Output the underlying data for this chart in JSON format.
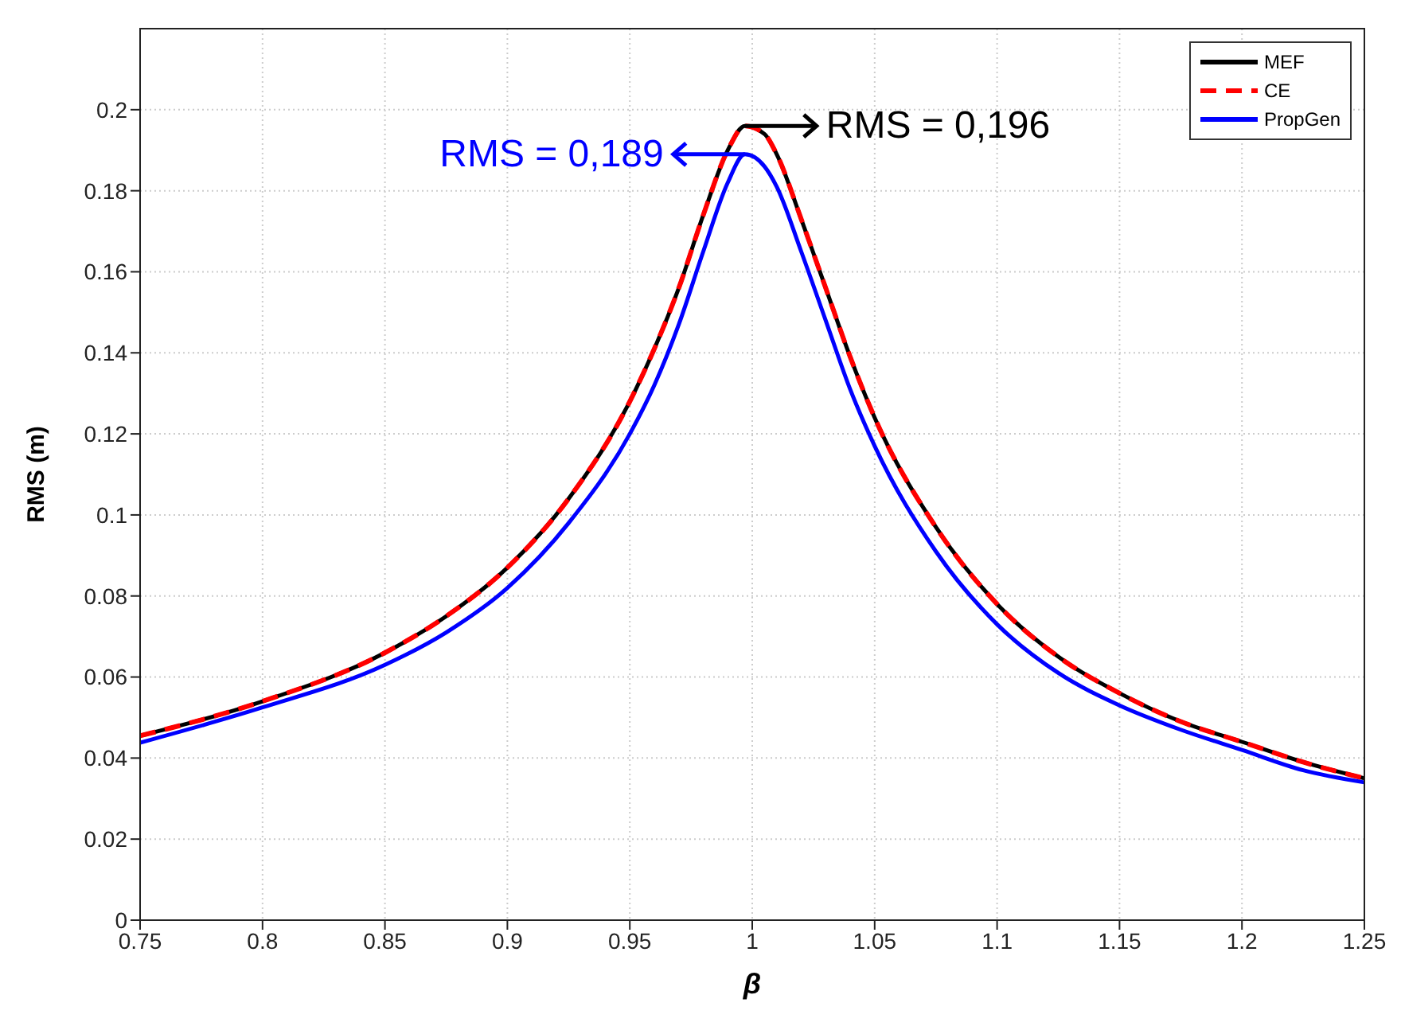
{
  "chart_data": {
    "type": "line",
    "xlabel": "β",
    "ylabel": "RMS (m)",
    "x": [
      0.75,
      0.8,
      0.85,
      0.875,
      0.9,
      0.925,
      0.95,
      0.96,
      0.97,
      0.98,
      0.99,
      0.997,
      1.005,
      1.01,
      1.02,
      1.03,
      1.04,
      1.05,
      1.075,
      1.1,
      1.125,
      1.15,
      1.175,
      1.2,
      1.225,
      1.25
    ],
    "series": [
      {
        "name": "MEF",
        "color": "#000000",
        "line_style": "solid",
        "values": [
          0.0455,
          0.054,
          0.066,
          0.075,
          0.087,
          0.104,
          0.128,
          0.141,
          0.156,
          0.174,
          0.19,
          0.196,
          0.194,
          0.189,
          0.173,
          0.156,
          0.139,
          0.124,
          0.097,
          0.078,
          0.065,
          0.056,
          0.049,
          0.044,
          0.039,
          0.035
        ]
      },
      {
        "name": "CE",
        "color": "#ff0000",
        "line_style": "dashed",
        "values": [
          0.0455,
          0.054,
          0.066,
          0.075,
          0.087,
          0.104,
          0.128,
          0.141,
          0.156,
          0.174,
          0.19,
          0.196,
          0.194,
          0.189,
          0.173,
          0.156,
          0.139,
          0.124,
          0.097,
          0.078,
          0.065,
          0.056,
          0.049,
          0.044,
          0.039,
          0.035
        ]
      },
      {
        "name": "PropGen",
        "color": "#0000ff",
        "line_style": "solid",
        "values": [
          0.0438,
          0.0525,
          0.063,
          0.071,
          0.082,
          0.098,
          0.12,
          0.132,
          0.147,
          0.165,
          0.182,
          0.189,
          0.186,
          0.181,
          0.165,
          0.148,
          0.131,
          0.117,
          0.091,
          0.073,
          0.061,
          0.053,
          0.047,
          0.042,
          0.037,
          0.034
        ]
      }
    ],
    "annotations": [
      {
        "text": "RMS = 0,196",
        "x": 0.997,
        "y": 0.196
      },
      {
        "text": "RMS = 0,189",
        "x": 0.997,
        "y": 0.189
      }
    ],
    "xlim": [
      0.75,
      1.25
    ],
    "xticks": [
      0.75,
      0.8,
      0.85,
      0.9,
      0.95,
      1,
      1.05,
      1.1,
      1.15,
      1.2,
      1.25
    ],
    "ylim": [
      0,
      0.22
    ],
    "yticks": [
      0,
      0.02,
      0.04,
      0.06,
      0.08,
      0.1,
      0.12,
      0.14,
      0.16,
      0.18,
      0.2
    ],
    "grid": true,
    "legend": "top right",
    "marker": "none"
  }
}
